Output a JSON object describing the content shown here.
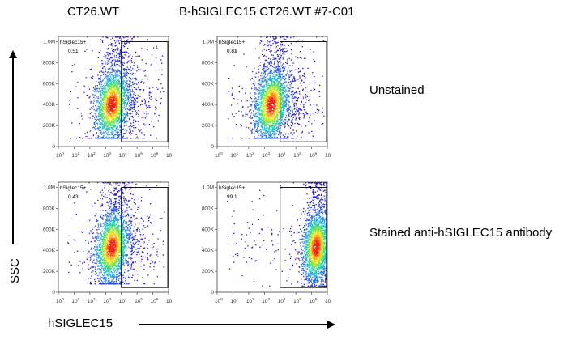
{
  "header": {
    "col1": "CT26.WT",
    "col2": "B-hSIGLEC15 CT26.WT  #7-C01"
  },
  "rows": {
    "row1": "Unstained",
    "row2": "Stained anti-hSIGLEC15 antibody"
  },
  "axes": {
    "y_label": "SSC",
    "x_label": "hSIGLEC15"
  },
  "chart_data": [
    {
      "type": "scatter",
      "title": "",
      "column": "CT26.WT",
      "row": "Unstained",
      "gate": {
        "name": "hSiglec15+",
        "percent": "0.51",
        "x_range": [
          1000,
          1000000
        ],
        "y_range": [
          0,
          1000000
        ]
      },
      "population": {
        "x_center_log10": 2.4,
        "x_spread_log10": 0.55,
        "y_center": 400000,
        "y_range": [
          80000,
          1050000
        ],
        "tilt": 0.7
      },
      "xlim_log10": [
        -1,
        6
      ],
      "ylim": [
        0,
        1050000
      ]
    },
    {
      "type": "scatter",
      "title": "",
      "column": "B-hSIGLEC15 CT26.WT #7-C01",
      "row": "Unstained",
      "gate": {
        "name": "hSiglec15+",
        "percent": "0.81",
        "x_range": [
          1000,
          1000000
        ],
        "y_range": [
          0,
          1000000
        ]
      },
      "population": {
        "x_center_log10": 2.45,
        "x_spread_log10": 0.55,
        "y_center": 400000,
        "y_range": [
          80000,
          1050000
        ],
        "tilt": 0.7
      },
      "xlim_log10": [
        -1,
        6
      ],
      "ylim": [
        0,
        1050000
      ]
    },
    {
      "type": "scatter",
      "title": "",
      "column": "CT26.WT",
      "row": "Stained anti-hSIGLEC15 antibody",
      "gate": {
        "name": "hSiglec15+",
        "percent": "0.43",
        "x_range": [
          1000,
          1000000
        ],
        "y_range": [
          0,
          1000000
        ]
      },
      "population": {
        "x_center_log10": 2.4,
        "x_spread_log10": 0.55,
        "y_center": 430000,
        "y_range": [
          80000,
          1050000
        ],
        "tilt": 0.6
      },
      "xlim_log10": [
        -1,
        6
      ],
      "ylim": [
        0,
        1050000
      ]
    },
    {
      "type": "scatter",
      "title": "",
      "column": "B-hSIGLEC15 CT26.WT #7-C01",
      "row": "Stained anti-hSIGLEC15 antibody",
      "gate": {
        "name": "hSiglec15+",
        "percent": "99.1",
        "x_range": [
          1000,
          1000000
        ],
        "y_range": [
          0,
          1000000
        ]
      },
      "population": {
        "x_center_log10": 5.3,
        "x_spread_log10": 0.45,
        "y_center": 430000,
        "y_range": [
          60000,
          1050000
        ],
        "tilt": 0.4
      },
      "xlim_log10": [
        -1,
        6
      ],
      "ylim": [
        0,
        1050000
      ]
    }
  ],
  "tick_labels": {
    "y": [
      "0",
      "200K",
      "400K",
      "600K",
      "800K",
      "1.0M"
    ],
    "x_base": "10",
    "x_exp": [
      "0",
      "1",
      "2",
      "3",
      "4",
      "5",
      "6"
    ]
  },
  "colors": {
    "density_low": "#2b1bd6",
    "density_mid": "#1fc8b0",
    "density_high": "#ff2a1a",
    "gate": "#000000",
    "axis": "#444444"
  }
}
